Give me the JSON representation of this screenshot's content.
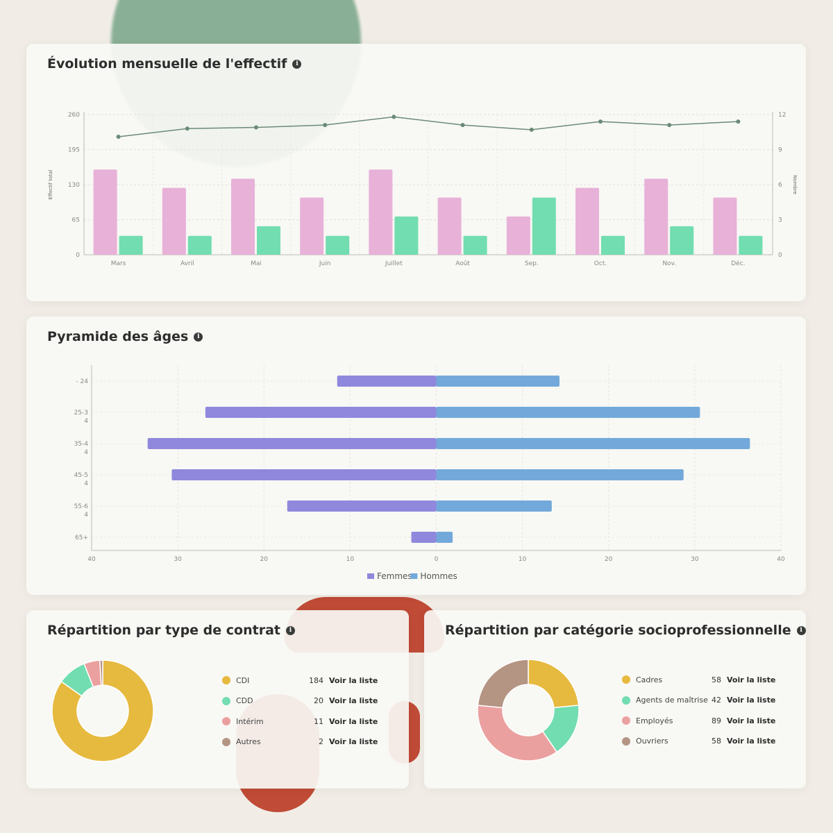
{
  "monthly_card": {
    "title": "Évolution mensuelle de l'effectif",
    "y_left_label": "Effectif total",
    "y_right_label": "Nombre"
  },
  "pyramid_card": {
    "title": "Pyramide des âges"
  },
  "contract_card": {
    "title": "Répartition par type de contrat",
    "items": [
      {
        "label": "CDI",
        "count": "184",
        "link": "Voir la liste",
        "color": "#e6b93f"
      },
      {
        "label": "CDD",
        "count": "20",
        "link": "Voir la liste",
        "color": "#72ddb0"
      },
      {
        "label": "Intérim",
        "count": "11",
        "link": "Voir la liste",
        "color": "#eba0a0"
      },
      {
        "label": "Autres",
        "count": "2",
        "link": "Voir la liste",
        "color": "#b49482"
      }
    ]
  },
  "csp_card": {
    "title": "Répartition par catégorie socioprofessionnelle",
    "items": [
      {
        "label": "Cadres",
        "count": "58",
        "link": "Voir la liste",
        "color": "#e6b93f"
      },
      {
        "label": "Agents de maîtrise",
        "count": "42",
        "link": "Voir la liste",
        "color": "#72ddb0"
      },
      {
        "label": "Employés",
        "count": "89",
        "link": "Voir la liste",
        "color": "#eba0a0"
      },
      {
        "label": "Ouvriers",
        "count": "58",
        "link": "Voir la liste",
        "color": "#b49482"
      }
    ]
  },
  "chart_data": [
    {
      "type": "bar",
      "categories": [
        "Mars",
        "Avril",
        "Mai",
        "Juin",
        "Juillet",
        "Août",
        "Sep.",
        "Oct.",
        "Nov.",
        "Déc."
      ],
      "ylabel": "Effectif total",
      "y2label": "Nombre",
      "ylim": [
        0,
        260
      ],
      "y2lim": [
        0,
        12
      ],
      "yticks": [
        0,
        65,
        130,
        195,
        260
      ],
      "y2ticks": [
        0,
        3,
        6,
        9,
        12
      ],
      "series": [
        {
          "type": "bar",
          "axis": "left",
          "color": "#e8b1d8",
          "values": [
            158,
            124,
            141,
            106,
            158,
            106,
            71,
            124,
            141,
            106
          ]
        },
        {
          "type": "bar",
          "axis": "left",
          "color": "#72ddb0",
          "values": [
            35,
            35,
            53,
            35,
            71,
            35,
            106,
            35,
            53,
            35
          ]
        },
        {
          "type": "line",
          "axis": "right",
          "color": "#6b8a77",
          "values": [
            10.1,
            10.8,
            10.9,
            11.1,
            11.8,
            11.1,
            10.7,
            11.4,
            11.1,
            11.4
          ]
        }
      ],
      "grid": true
    },
    {
      "type": "bar",
      "orientation": "horizontal",
      "categories": [
        "- 24",
        "25-34",
        "35-44",
        "45-54",
        "55-64",
        "65+"
      ],
      "xlim": [
        -40,
        40
      ],
      "xticks": [
        -40,
        -30,
        -20,
        -10,
        0,
        10,
        20,
        30,
        40
      ],
      "xtick_labels": [
        "40",
        "30",
        "20",
        "10",
        "0",
        "10",
        "20",
        "30",
        "40"
      ],
      "series": [
        {
          "name": "Femmes",
          "color": "#8f88dc",
          "values": [
            -11.5,
            -26.8,
            -33.5,
            -30.7,
            -17.3,
            -2.9
          ]
        },
        {
          "name": "Hommes",
          "color": "#72a9da",
          "values": [
            14.3,
            30.6,
            36.4,
            28.7,
            13.4,
            1.9
          ]
        }
      ],
      "legend": "bottom",
      "grid": true
    },
    {
      "type": "pie",
      "labels": [
        "CDI",
        "CDD",
        "Intérim",
        "Autres"
      ],
      "values": [
        184,
        20,
        11,
        2
      ],
      "colors": [
        "#e6b93f",
        "#72ddb0",
        "#eba0a0",
        "#b49482"
      ]
    },
    {
      "type": "pie",
      "labels": [
        "Cadres",
        "Agents de maîtrise",
        "Employés",
        "Ouvriers"
      ],
      "values": [
        58,
        42,
        89,
        58
      ],
      "colors": [
        "#e6b93f",
        "#72ddb0",
        "#eba0a0",
        "#b49482"
      ]
    }
  ]
}
